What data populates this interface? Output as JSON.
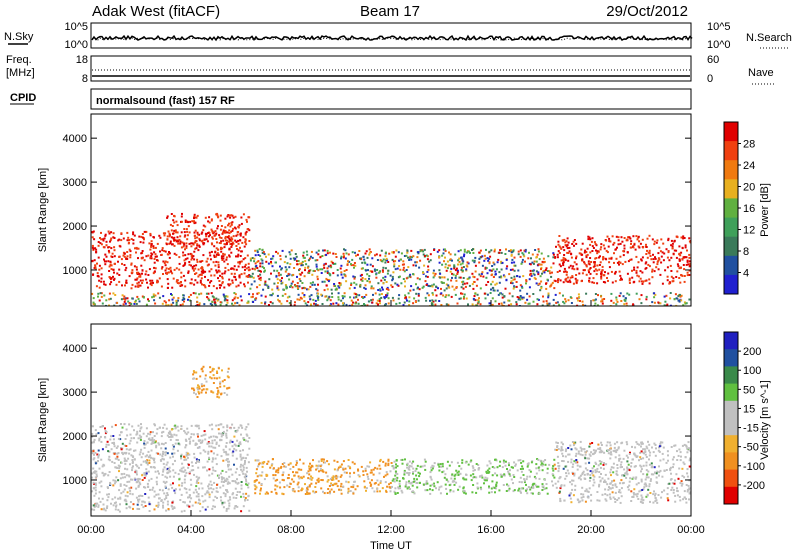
{
  "header": {
    "station": "Adak West (fitACF)",
    "beam": "Beam 17",
    "date": "29/Oct/2012"
  },
  "top_panels": {
    "nsky_label": "N.Sky",
    "nsky_ticks": [
      "10^5",
      "10^0"
    ],
    "nsearch_label": "N.Search",
    "nsearch_ticks": [
      "10^5",
      "10^0"
    ],
    "freq_label_1": "Freq.",
    "freq_label_2": "[MHz]",
    "freq_ticks": [
      "18",
      "8"
    ],
    "nave_label": "Nave",
    "nave_ticks": [
      "60",
      "0"
    ],
    "cpid_label": "CPID",
    "cpid_text": "normalsound (fast) 157 RF"
  },
  "colors": {
    "power_scale": [
      "#2020d0",
      "#2050a0",
      "#3a7a5a",
      "#3fa05a",
      "#60b040",
      "#e8b020",
      "#f07a10",
      "#f04010",
      "#e00000"
    ],
    "velocity_scale": [
      "#e00000",
      "#f05010",
      "#f09020",
      "#f0b030",
      "#c0c0c0",
      "#c0c0c0",
      "#60c040",
      "#3a8a4a",
      "#2050a0",
      "#2020c0"
    ]
  },
  "chart_data": [
    {
      "type": "heatmap",
      "name": "Power",
      "ylabel": "Slant Range [km]",
      "colorbar_label": "Power [dB]",
      "colorbar_ticks": [
        "28",
        "24",
        "20",
        "16",
        "12",
        "8",
        "4"
      ],
      "yticks": [
        "4000",
        "3000",
        "2000",
        "1000"
      ],
      "ylim": [
        180,
        4550
      ],
      "xlim_hours": [
        0,
        24
      ],
      "echo_regions": [
        {
          "t": [
            0.0,
            6.3
          ],
          "range_km": [
            600,
            1900
          ],
          "level": "high"
        },
        {
          "t": [
            3.0,
            6.3
          ],
          "range_km": [
            1600,
            2300
          ],
          "level": "high"
        },
        {
          "t": [
            6.3,
            18.5
          ],
          "range_km": [
            550,
            1500
          ],
          "level": "mixed"
        },
        {
          "t": [
            18.5,
            24.0
          ],
          "range_km": [
            700,
            1800
          ],
          "level": "high"
        },
        {
          "t": [
            0.0,
            24.0
          ],
          "range_km": [
            200,
            500
          ],
          "level": "mixed"
        }
      ]
    },
    {
      "type": "heatmap",
      "name": "Velocity",
      "ylabel": "Slant Range [km]",
      "colorbar_label": "Velocity [m s^-1]",
      "colorbar_ticks": [
        "200",
        "100",
        "50",
        "15",
        "-15",
        "-50",
        "-100",
        "-200"
      ],
      "yticks": [
        "4000",
        "3000",
        "2000",
        "1000"
      ],
      "ylim": [
        180,
        4550
      ],
      "xlim_hours": [
        0,
        24
      ],
      "echo_regions": [
        {
          "t": [
            0.0,
            6.3
          ],
          "range_km": [
            300,
            2300
          ],
          "level": "ground"
        },
        {
          "t": [
            4.0,
            5.5
          ],
          "range_km": [
            2900,
            3600
          ],
          "level": "negative"
        },
        {
          "t": [
            6.5,
            12.0
          ],
          "range_km": [
            700,
            1500
          ],
          "level": "negative"
        },
        {
          "t": [
            12.0,
            18.5
          ],
          "range_km": [
            700,
            1500
          ],
          "level": "positive"
        },
        {
          "t": [
            18.5,
            24.0
          ],
          "range_km": [
            500,
            1900
          ],
          "level": "ground"
        }
      ]
    }
  ],
  "xaxis": {
    "ticks": [
      "00:00",
      "04:00",
      "08:00",
      "12:00",
      "16:00",
      "20:00",
      "00:00"
    ],
    "label": "Time UT"
  }
}
